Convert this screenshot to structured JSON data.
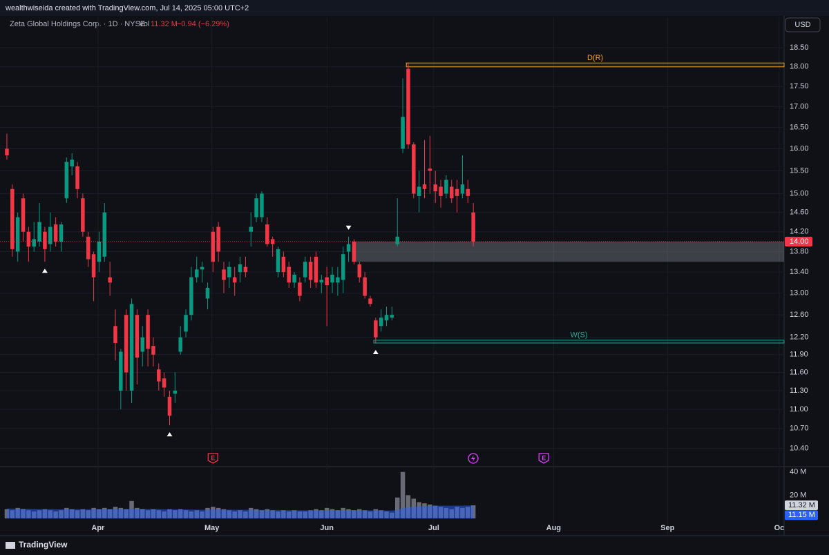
{
  "chart_data": {
    "type": "candlestick",
    "watermark": "wealthwiseida created with TradingView.com, Jul 14, 2025 05:00 UTC+2",
    "symbol": "Zeta Global Holdings Corp. · 1D · NYSE",
    "volume_title": "Vol",
    "change": "−0.94 (−6.29%)",
    "currency": "USD",
    "brand": "TradingView",
    "log_scale": true,
    "grid": true,
    "up_color": "#089981",
    "down_color": "#f23645",
    "ylim": [
      10.14,
      18.95
    ],
    "yticks": [
      {
        "value": 18.5,
        "label": "18.50"
      },
      {
        "value": 18,
        "label": "18.00"
      },
      {
        "value": 17.5,
        "label": "17.50"
      },
      {
        "value": 17,
        "label": "17.00"
      },
      {
        "value": 16.5,
        "label": "16.50"
      },
      {
        "value": 16,
        "label": "16.00"
      },
      {
        "value": 15.5,
        "label": "15.50"
      },
      {
        "value": 15,
        "label": "15.00"
      },
      {
        "value": 14.6,
        "label": "14.60"
      },
      {
        "value": 14.2,
        "label": "14.20"
      },
      {
        "value": 13.8,
        "label": "13.80"
      },
      {
        "value": 13.4,
        "label": "13.40"
      },
      {
        "value": 13,
        "label": "13.00"
      },
      {
        "value": 12.6,
        "label": "12.60"
      },
      {
        "value": 12.2,
        "label": "12.20"
      },
      {
        "value": 11.9,
        "label": "11.90"
      },
      {
        "value": 11.6,
        "label": "11.60"
      },
      {
        "value": 11.3,
        "label": "11.30"
      },
      {
        "value": 11,
        "label": "11.00"
      },
      {
        "value": 10.7,
        "label": "10.70"
      },
      {
        "value": 10.4,
        "label": "10.40"
      }
    ],
    "xlim": [
      -1.27,
      143.3
    ],
    "xticks": [
      {
        "value": 16.8,
        "label": "Apr"
      },
      {
        "value": 37.8,
        "label": "May"
      },
      {
        "value": 59.0,
        "label": "Jun"
      },
      {
        "value": 78.7,
        "label": "Jul"
      },
      {
        "value": 100.8,
        "label": "Aug"
      },
      {
        "value": 121.8,
        "label": "Sep"
      },
      {
        "value": 142.4,
        "label": "Oc"
      }
    ],
    "open": [
      16.0,
      15.1,
      13.8,
      14.9,
      14.2,
      13.9,
      14.0,
      14.2,
      13.95,
      14.35,
      14.0,
      14.9,
      15.6,
      15.6,
      14.9,
      14.1,
      13.75,
      13.6,
      13.7,
      13.3,
      12.4,
      11.3,
      12.6,
      11.3,
      12.6,
      11.95,
      12.6,
      12.05,
      11.65,
      11.5,
      11.2,
      11.25,
      11.95,
      12.3,
      12.6,
      13.3,
      13.45,
      12.9,
      14.2,
      14.3,
      13.45,
      13.3,
      13.3,
      13.4,
      13.5,
      14.2,
      14.5,
      14.5,
      14.35,
      14.05,
      13.4,
      13.7,
      13.5,
      13.2,
      13.2,
      13.3,
      13.6,
      13.7,
      13.2,
      13.3,
      13.2,
      13.2,
      13.25,
      13.8,
      14.0,
      13.55,
      13.3,
      12.9,
      12.5,
      12.4,
      12.5,
      12.55,
      13.95,
      16.0,
      17.95,
      16.1,
      14.95,
      15.2,
      15.55,
      15.2,
      15.15,
      15.0,
      15.15,
      15.1,
      15.0,
      15.1,
      14.6
    ],
    "high": [
      16.35,
      15.2,
      14.6,
      15.0,
      14.3,
      14.4,
      14.8,
      14.3,
      14.6,
      14.5,
      14.4,
      15.8,
      15.9,
      15.7,
      15.0,
      14.2,
      13.8,
      14.2,
      14.8,
      13.6,
      12.7,
      12.0,
      12.7,
      12.9,
      12.7,
      12.4,
      12.7,
      12.2,
      11.75,
      11.6,
      11.3,
      11.6,
      12.4,
      12.7,
      13.5,
      13.7,
      13.6,
      13.2,
      14.3,
      14.4,
      13.6,
      13.6,
      13.5,
      13.7,
      13.7,
      14.6,
      15.0,
      15.05,
      14.5,
      14.1,
      13.9,
      13.8,
      13.6,
      13.4,
      13.3,
      13.7,
      13.7,
      13.8,
      13.35,
      13.5,
      13.5,
      13.5,
      13.9,
      14.1,
      14.05,
      13.6,
      13.4,
      12.95,
      12.55,
      12.7,
      12.75,
      12.75,
      14.9,
      17.7,
      18.1,
      16.15,
      15.5,
      16.2,
      16.3,
      15.5,
      15.3,
      15.4,
      15.3,
      15.3,
      15.85,
      15.3,
      14.8
    ],
    "low": [
      15.75,
      13.7,
      13.6,
      14.0,
      13.6,
      13.8,
      13.9,
      13.6,
      13.8,
      13.9,
      13.8,
      14.8,
      15.4,
      14.9,
      14.1,
      13.5,
      12.85,
      13.4,
      13.6,
      12.95,
      11.8,
      11.0,
      11.3,
      11.1,
      11.4,
      11.7,
      11.7,
      11.7,
      11.3,
      11.2,
      10.75,
      11.1,
      11.9,
      12.2,
      12.5,
      13.2,
      13.2,
      12.7,
      13.4,
      13.6,
      13.0,
      13.1,
      12.95,
      13.2,
      13.3,
      13.9,
      14.4,
      14.4,
      13.9,
      13.7,
      13.3,
      13.3,
      13.1,
      13.1,
      12.85,
      13.2,
      13.1,
      13.1,
      13.0,
      12.4,
      13.0,
      12.95,
      13.0,
      13.6,
      13.55,
      13.2,
      12.9,
      12.75,
      12.1,
      12.3,
      12.4,
      12.5,
      13.9,
      15.9,
      16.0,
      14.9,
      14.6,
      14.9,
      15.0,
      14.8,
      14.7,
      14.9,
      14.8,
      14.6,
      14.9,
      14.8,
      13.9
    ],
    "close": [
      15.85,
      13.85,
      14.5,
      14.2,
      13.9,
      14.05,
      14.4,
      13.85,
      14.3,
      14.0,
      14.35,
      15.7,
      15.75,
      15.1,
      14.2,
      13.65,
      13.3,
      14.0,
      14.6,
      13.2,
      12.1,
      11.95,
      11.6,
      12.8,
      11.85,
      12.2,
      12.0,
      11.9,
      11.45,
      11.35,
      10.9,
      11.3,
      12.2,
      12.6,
      13.3,
      13.45,
      13.5,
      13.1,
      13.6,
      13.8,
      13.25,
      13.5,
      13.2,
      13.55,
      13.4,
      14.3,
      14.9,
      15.0,
      13.95,
      13.95,
      13.85,
      13.4,
      13.2,
      13.35,
      12.95,
      13.6,
      13.25,
      13.2,
      13.25,
      13.15,
      13.35,
      13.3,
      13.75,
      13.95,
      13.6,
      13.3,
      12.95,
      12.8,
      12.2,
      12.55,
      12.6,
      12.6,
      14.1,
      16.75,
      16.1,
      15.0,
      15.15,
      15.1,
      15.5,
      15.05,
      14.95,
      15.3,
      14.9,
      14.95,
      15.2,
      14.95,
      14.0
    ],
    "last_price": {
      "value": 14,
      "label": "14.00"
    },
    "volume": [
      8,
      7,
      9,
      8,
      7,
      6,
      7,
      8,
      7,
      6,
      7,
      9,
      8,
      7,
      8,
      7,
      9,
      8,
      9,
      8,
      10,
      9,
      8,
      15,
      9,
      8,
      7,
      8,
      7,
      6,
      8,
      7,
      8,
      7,
      6,
      7,
      6,
      9,
      10,
      9,
      8,
      7,
      6,
      7,
      6,
      9,
      8,
      7,
      8,
      7,
      6,
      7,
      6,
      7,
      6,
      6,
      7,
      8,
      7,
      9,
      8,
      7,
      9,
      8,
      7,
      8,
      7,
      6,
      8,
      7,
      6,
      5,
      18,
      40,
      20,
      17,
      14,
      13,
      12,
      11,
      10,
      9,
      8,
      10,
      9,
      10,
      11.32
    ],
    "volume_ma": [
      8.5,
      8.5,
      8.4,
      8.4,
      8.3,
      8.2,
      8.1,
      8.0,
      8.0,
      7.9,
      7.9,
      8.0,
      8.0,
      7.9,
      7.9,
      7.8,
      7.9,
      7.9,
      8.0,
      8.0,
      8.1,
      8.1,
      8.1,
      8.4,
      8.4,
      8.3,
      8.2,
      8.1,
      8.0,
      7.9,
      7.8,
      7.8,
      7.7,
      7.7,
      7.6,
      7.5,
      7.4,
      7.5,
      7.6,
      7.6,
      7.6,
      7.5,
      7.4,
      7.4,
      7.4,
      7.4,
      7.3,
      7.3,
      7.3,
      7.2,
      7.2,
      7.1,
      7.1,
      7.0,
      7.0,
      6.9,
      6.9,
      7.0,
      7.0,
      7.1,
      7.1,
      7.1,
      7.1,
      7.1,
      7.1,
      7.0,
      7.0,
      6.9,
      6.9,
      6.9,
      6.8,
      6.8,
      7.3,
      8.9,
      9.6,
      10.1,
      10.4,
      10.6,
      10.8,
      10.9,
      11.0,
      11.0,
      10.9,
      11.0,
      11.0,
      11.1,
      11.15
    ],
    "volume_color": "#787b86",
    "volume_ma_color": "#2962ff",
    "vlim": [
      0,
      44
    ],
    "vticks": [
      {
        "value": 40,
        "label": "40 M"
      },
      {
        "value": 20,
        "label": "20 M"
      }
    ],
    "volume_last": {
      "value": 11.32,
      "label": "11.32 M"
    },
    "volume_ma_last": {
      "value": 11.15,
      "label": "11.15 M"
    },
    "zones": [
      {
        "label": "D(R)",
        "top": 18.1,
        "bottom": 18.0,
        "start": 74,
        "color": "#f7a21b"
      },
      {
        "label": "W(S)",
        "top": 12.15,
        "bottom": 12.1,
        "start": 68,
        "color": "#22ab94"
      },
      {
        "top": 14.0,
        "bottom": 13.6,
        "start": 64,
        "color": "#9598a1"
      }
    ],
    "pivots": [
      {
        "index": 7,
        "direction": "up"
      },
      {
        "index": 30,
        "direction": "up"
      },
      {
        "index": 68,
        "direction": "up"
      },
      {
        "index": 63,
        "direction": "down"
      }
    ],
    "events": [
      {
        "index": 38,
        "label": "E",
        "color": "#f23645"
      },
      {
        "index": 99,
        "label": "E",
        "color": "#e040fb"
      }
    ]
  }
}
